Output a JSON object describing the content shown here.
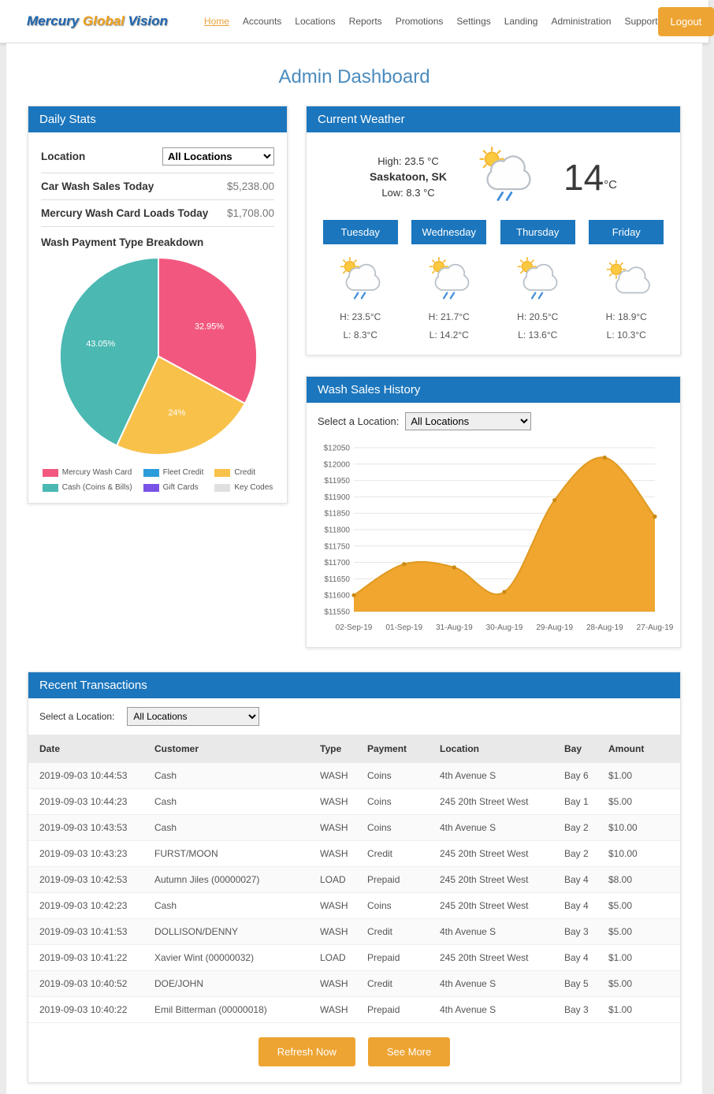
{
  "header": {
    "logo": {
      "mercury": "Mercury",
      "global": "Global",
      "vision": "Vision"
    },
    "nav": [
      {
        "label": "Home",
        "active": true
      },
      {
        "label": "Accounts",
        "active": false
      },
      {
        "label": "Locations",
        "active": false
      },
      {
        "label": "Reports",
        "active": false
      },
      {
        "label": "Promotions",
        "active": false
      },
      {
        "label": "Settings",
        "active": false
      },
      {
        "label": "Landing",
        "active": false
      },
      {
        "label": "Administration",
        "active": false
      },
      {
        "label": "Support",
        "active": false
      }
    ],
    "logout_label": "Logout"
  },
  "page_title": "Admin Dashboard",
  "daily_stats": {
    "title": "Daily Stats",
    "location_label": "Location",
    "location_value": "All Locations",
    "stats": [
      {
        "label": "Car Wash Sales Today",
        "value": "$5,238.00"
      },
      {
        "label": "Mercury Wash Card Loads Today",
        "value": "$1,708.00"
      }
    ],
    "breakdown_title": "Wash Payment Type Breakdown"
  },
  "weather": {
    "title": "Current Weather",
    "high": "High: 23.5 °C",
    "city": "Saskatoon, SK",
    "low": "Low: 8.3 °C",
    "current_temp": "14",
    "current_unit": "°C",
    "current_icon": "sun-cloud-rain",
    "days": [
      {
        "name": "Tuesday",
        "icon": "sun-cloud-rain",
        "high": "H: 23.5°C",
        "low": "L: 8.3°C"
      },
      {
        "name": "Wednesday",
        "icon": "sun-cloud-rain",
        "high": "H: 21.7°C",
        "low": "L: 14.2°C"
      },
      {
        "name": "Thursday",
        "icon": "sun-cloud-rain",
        "high": "H: 20.5°C",
        "low": "L: 13.6°C"
      },
      {
        "name": "Friday",
        "icon": "sun-cloud",
        "high": "H: 18.9°C",
        "low": "L: 10.3°C"
      }
    ]
  },
  "sales_history": {
    "title": "Wash Sales History",
    "select_label": "Select a Location:",
    "select_value": "All Locations"
  },
  "transactions": {
    "title": "Recent Transactions",
    "select_label": "Select a Location:",
    "select_value": "All Locations",
    "columns": [
      "Date",
      "Customer",
      "Type",
      "Payment",
      "Location",
      "Bay",
      "Amount"
    ],
    "rows": [
      {
        "date": "2019-09-03 10:44:53",
        "customer": "Cash",
        "type": "WASH",
        "payment": "Coins",
        "location": "4th Avenue S",
        "bay": "Bay 6",
        "amount": "$1.00"
      },
      {
        "date": "2019-09-03 10:44:23",
        "customer": "Cash",
        "type": "WASH",
        "payment": "Coins",
        "location": "245 20th Street West",
        "bay": "Bay 1",
        "amount": "$5.00"
      },
      {
        "date": "2019-09-03 10:43:53",
        "customer": "Cash",
        "type": "WASH",
        "payment": "Coins",
        "location": "4th Avenue S",
        "bay": "Bay 2",
        "amount": "$10.00"
      },
      {
        "date": "2019-09-03 10:43:23",
        "customer": "FURST/MOON",
        "type": "WASH",
        "payment": "Credit",
        "location": "245 20th Street West",
        "bay": "Bay 2",
        "amount": "$10.00"
      },
      {
        "date": "2019-09-03 10:42:53",
        "customer": "Autumn Jiles (00000027)",
        "type": "LOAD",
        "payment": "Prepaid",
        "location": "245 20th Street West",
        "bay": "Bay 4",
        "amount": "$8.00"
      },
      {
        "date": "2019-09-03 10:42:23",
        "customer": "Cash",
        "type": "WASH",
        "payment": "Coins",
        "location": "245 20th Street West",
        "bay": "Bay 4",
        "amount": "$5.00"
      },
      {
        "date": "2019-09-03 10:41:53",
        "customer": "DOLLISON/DENNY",
        "type": "WASH",
        "payment": "Credit",
        "location": "4th Avenue S",
        "bay": "Bay 3",
        "amount": "$5.00"
      },
      {
        "date": "2019-09-03 10:41:22",
        "customer": "Xavier Wint (00000032)",
        "type": "LOAD",
        "payment": "Prepaid",
        "location": "245 20th Street West",
        "bay": "Bay 4",
        "amount": "$1.00"
      },
      {
        "date": "2019-09-03 10:40:52",
        "customer": "DOE/JOHN",
        "type": "WASH",
        "payment": "Credit",
        "location": "4th Avenue S",
        "bay": "Bay 5",
        "amount": "$5.00"
      },
      {
        "date": "2019-09-03 10:40:22",
        "customer": "Emil Bitterman (00000018)",
        "type": "WASH",
        "payment": "Prepaid",
        "location": "4th Avenue S",
        "bay": "Bay 3",
        "amount": "$1.00"
      }
    ],
    "refresh_label": "Refresh Now",
    "see_more_label": "See More"
  },
  "colors": {
    "primary_blue": "#1b76bd",
    "accent_orange": "#eda433",
    "title_blue": "#4a8bbe"
  },
  "chart_data": [
    {
      "type": "pie",
      "title": "Wash Payment Type Breakdown",
      "labels": [
        "Mercury Wash Card",
        "Fleet Credit",
        "Credit",
        "Cash (Coins & Bills)",
        "Gift Cards",
        "Key Codes"
      ],
      "values": [
        32.95,
        0,
        24,
        43.05,
        0,
        0
      ],
      "slice_labels": [
        "32.95%",
        "",
        "24%",
        "43.05%",
        "",
        ""
      ],
      "colors": [
        "#f2587f",
        "#2d9cdb",
        "#f8c14a",
        "#4bb8b2",
        "#7b52e8",
        "#e0e0e0"
      ],
      "legend_position": "bottom"
    },
    {
      "type": "area",
      "title": "Wash Sales History",
      "x": [
        "02-Sep-19",
        "01-Sep-19",
        "31-Aug-19",
        "30-Aug-19",
        "29-Aug-19",
        "28-Aug-19",
        "27-Aug-19"
      ],
      "values": [
        11600,
        11695,
        11685,
        11610,
        11890,
        12020,
        11840
      ],
      "ylim": [
        11550,
        12050
      ],
      "ytick_step": 50,
      "y_prefix": "$",
      "fill_color": "#f0a62f",
      "line_color": "#e09a20",
      "point_color": "#c98a15",
      "grid": true
    }
  ]
}
